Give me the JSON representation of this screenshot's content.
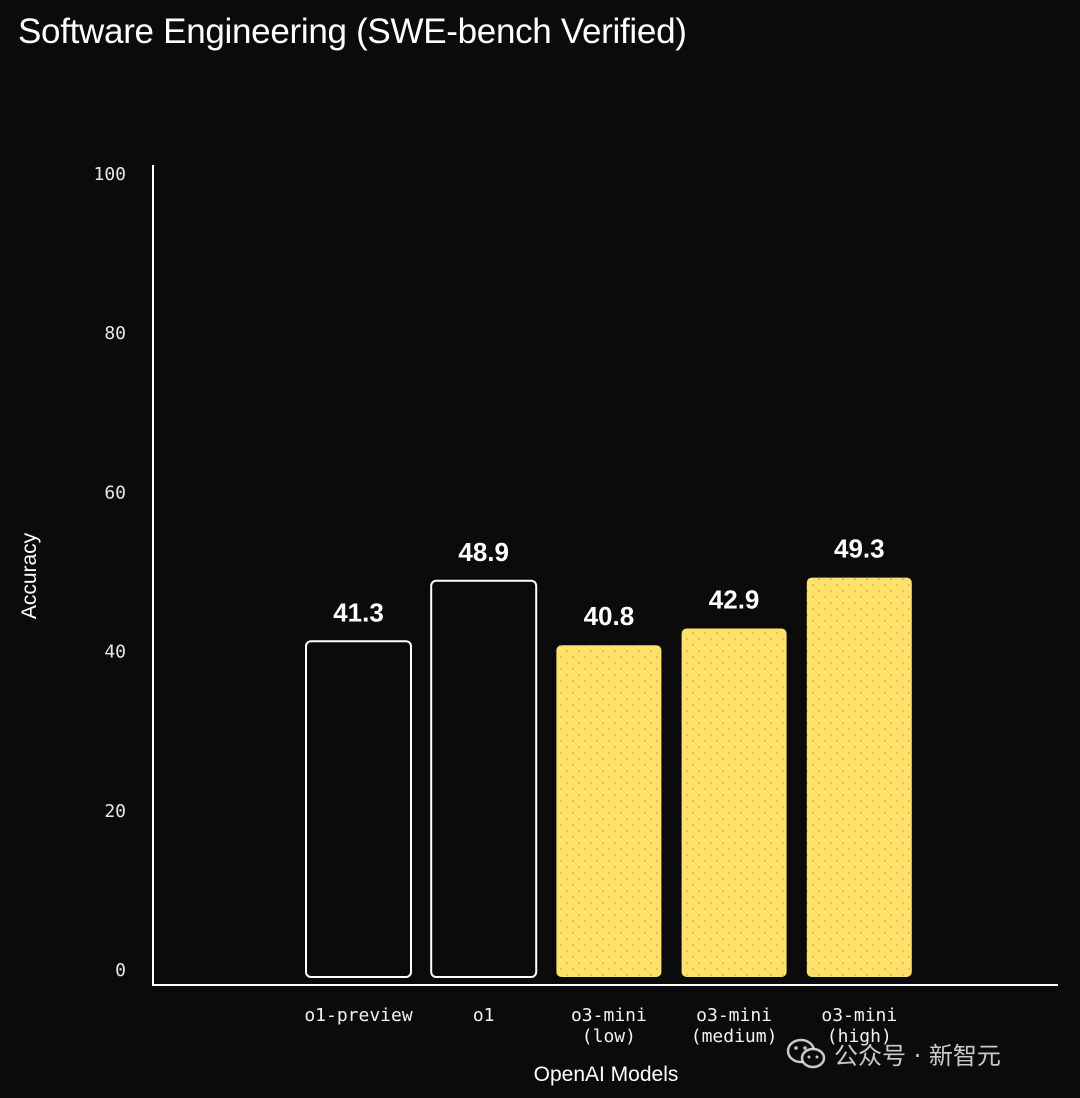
{
  "chart_data": {
    "type": "bar",
    "title": "Software Engineering (SWE-bench Verified)",
    "xlabel": "OpenAI Models",
    "ylabel": "Accuracy",
    "ylim": [
      0,
      100
    ],
    "yticks": [
      0,
      20,
      40,
      60,
      80,
      100
    ],
    "ytick_labels": [
      "0",
      "20",
      "40",
      "60",
      "80",
      "100"
    ],
    "grid": false,
    "categories": [
      [
        "o1-preview"
      ],
      [
        "o1"
      ],
      [
        "o3-mini",
        "(low)"
      ],
      [
        "o3-mini",
        "(medium)"
      ],
      [
        "o3-mini",
        "(high)"
      ]
    ],
    "values": [
      41.3,
      48.9,
      40.8,
      42.9,
      49.3
    ],
    "data_labels": [
      "41.3",
      "48.9",
      "40.8",
      "42.9",
      "49.3"
    ],
    "bar_styles": [
      "outline",
      "outline",
      "filled",
      "filled",
      "filled"
    ],
    "colors": {
      "background": "#0b0b0b",
      "outline": "#ffffff",
      "fill": "#fde16a",
      "dot": "#e6b93a",
      "axis": "#ffffff"
    }
  },
  "watermark": "公众号 · 新智元"
}
